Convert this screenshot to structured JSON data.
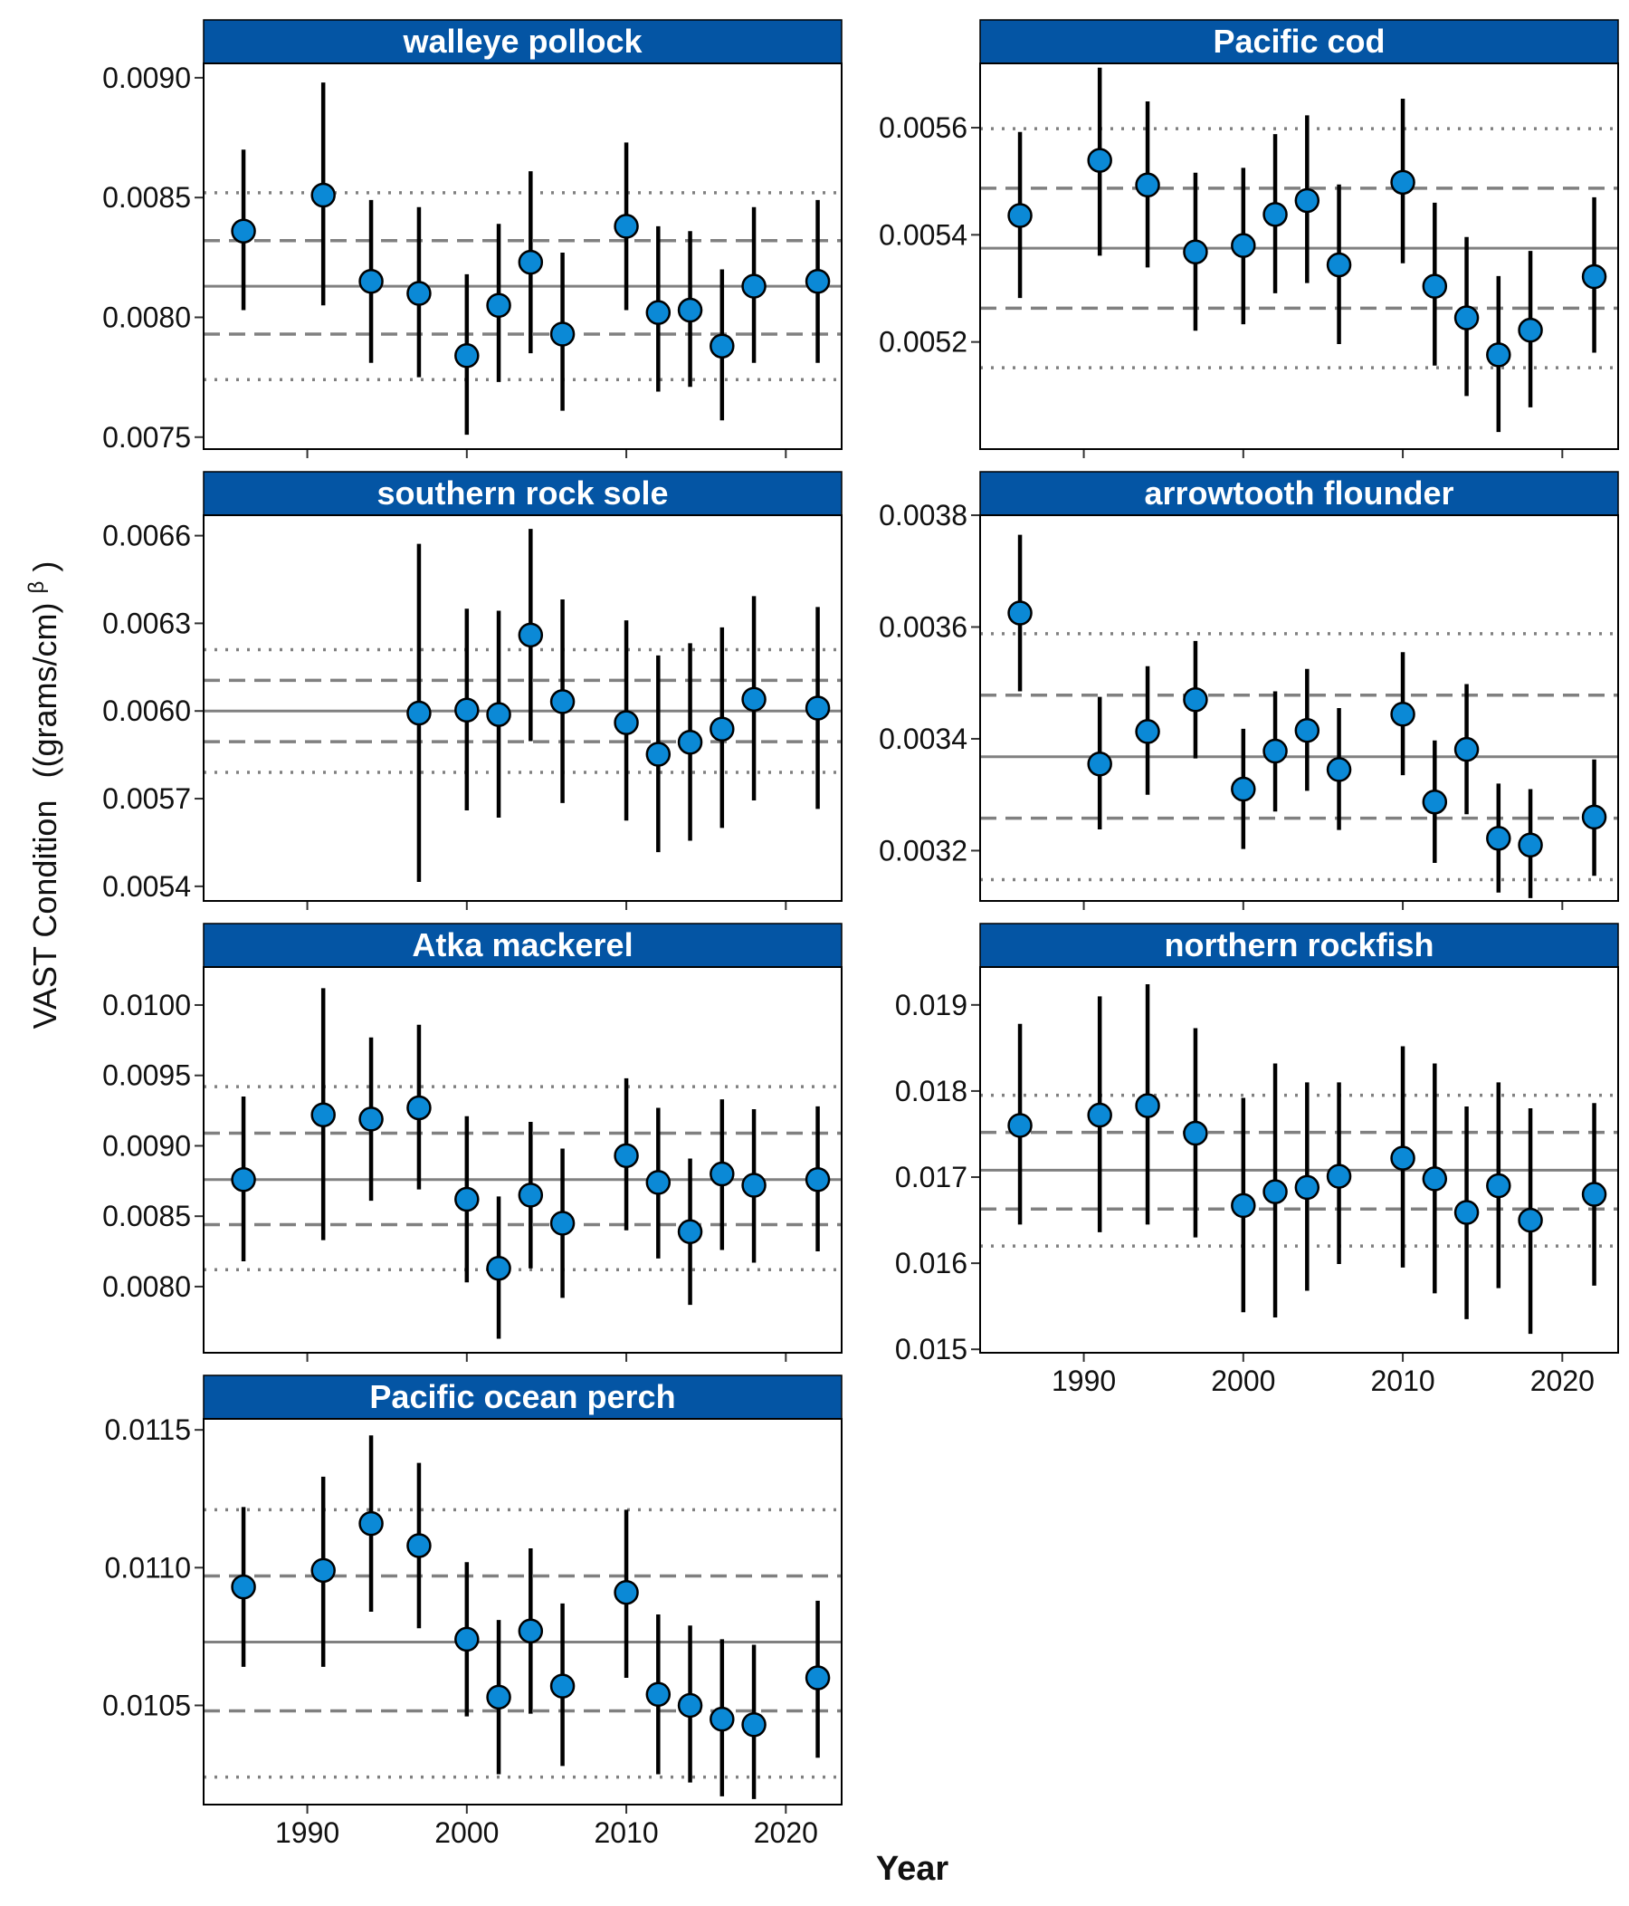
{
  "colors": {
    "strip": "#0455A4",
    "point": "#0B89D6",
    "errorbar": "#000000",
    "reference_line": "#808080",
    "panel_border": "#000000"
  },
  "axis_titles": {
    "y_prefix": "VAST Condition",
    "y_unit_open": "((grams/cm)",
    "y_unit_sup": "β",
    "y_unit_close": ")",
    "x": "Year"
  },
  "chart_data": [
    {
      "type": "scatter",
      "title": "walleye pollock",
      "x_ticks": [
        1990,
        2000,
        2010,
        2020
      ],
      "ylim": [
        0.00745,
        0.00906
      ],
      "y_ticks": [
        "0.0075",
        "0.0080",
        "0.0085",
        "0.0090"
      ],
      "reference_lines": {
        "mean": 0.00813,
        "dashed": [
          0.00793,
          0.00832
        ],
        "dotted": [
          0.00774,
          0.00852
        ]
      },
      "points": [
        {
          "x": 1986,
          "y": 0.00836,
          "lo": 0.00803,
          "hi": 0.0087
        },
        {
          "x": 1991,
          "y": 0.00851,
          "lo": 0.00805,
          "hi": 0.00898
        },
        {
          "x": 1994,
          "y": 0.00815,
          "lo": 0.00781,
          "hi": 0.00849
        },
        {
          "x": 1997,
          "y": 0.0081,
          "lo": 0.00775,
          "hi": 0.00846
        },
        {
          "x": 2000,
          "y": 0.00784,
          "lo": 0.00751,
          "hi": 0.00818
        },
        {
          "x": 2002,
          "y": 0.00805,
          "lo": 0.00773,
          "hi": 0.00839
        },
        {
          "x": 2004,
          "y": 0.00823,
          "lo": 0.00785,
          "hi": 0.00861
        },
        {
          "x": 2006,
          "y": 0.00793,
          "lo": 0.00761,
          "hi": 0.00827
        },
        {
          "x": 2010,
          "y": 0.00838,
          "lo": 0.00803,
          "hi": 0.00873
        },
        {
          "x": 2012,
          "y": 0.00802,
          "lo": 0.00769,
          "hi": 0.00838
        },
        {
          "x": 2014,
          "y": 0.00803,
          "lo": 0.00771,
          "hi": 0.00836
        },
        {
          "x": 2016,
          "y": 0.00788,
          "lo": 0.00757,
          "hi": 0.0082
        },
        {
          "x": 2018,
          "y": 0.00813,
          "lo": 0.00781,
          "hi": 0.00846
        },
        {
          "x": 2022,
          "y": 0.00815,
          "lo": 0.00781,
          "hi": 0.00849
        }
      ]
    },
    {
      "type": "scatter",
      "title": "Pacific cod",
      "x_ticks": [
        1990,
        2000,
        2010,
        2020
      ],
      "ylim": [
        0.005,
        0.00572
      ],
      "y_ticks": [
        "0.0052",
        "0.0054",
        "0.0056"
      ],
      "reference_lines": {
        "mean": 0.005375,
        "dashed": [
          0.005263,
          0.005487
        ],
        "dotted": [
          0.005152,
          0.005598
        ]
      },
      "points": [
        {
          "x": 1986,
          "y": 0.005436,
          "lo": 0.005282,
          "hi": 0.005592
        },
        {
          "x": 1991,
          "y": 0.005539,
          "lo": 0.005361,
          "hi": 0.005712
        },
        {
          "x": 1994,
          "y": 0.005493,
          "lo": 0.005339,
          "hi": 0.005649
        },
        {
          "x": 1997,
          "y": 0.005368,
          "lo": 0.005221,
          "hi": 0.005516
        },
        {
          "x": 2000,
          "y": 0.00538,
          "lo": 0.005233,
          "hi": 0.005525
        },
        {
          "x": 2002,
          "y": 0.005438,
          "lo": 0.005291,
          "hi": 0.005588
        },
        {
          "x": 2004,
          "y": 0.005464,
          "lo": 0.00531,
          "hi": 0.005623
        },
        {
          "x": 2006,
          "y": 0.005344,
          "lo": 0.005196,
          "hi": 0.005494
        },
        {
          "x": 2010,
          "y": 0.005498,
          "lo": 0.005347,
          "hi": 0.005654
        },
        {
          "x": 2012,
          "y": 0.005304,
          "lo": 0.005156,
          "hi": 0.00546
        },
        {
          "x": 2014,
          "y": 0.005245,
          "lo": 0.005099,
          "hi": 0.005396
        },
        {
          "x": 2016,
          "y": 0.005176,
          "lo": 0.005032,
          "hi": 0.005323
        },
        {
          "x": 2018,
          "y": 0.005222,
          "lo": 0.005078,
          "hi": 0.00537
        },
        {
          "x": 2022,
          "y": 0.005322,
          "lo": 0.00518,
          "hi": 0.00547
        }
      ]
    },
    {
      "type": "scatter",
      "title": "southern rock sole",
      "x_ticks": [
        1990,
        2000,
        2010,
        2020
      ],
      "ylim": [
        0.00535,
        0.00667
      ],
      "y_ticks": [
        "0.0054",
        "0.0057",
        "0.0060",
        "0.0063",
        "0.0066"
      ],
      "reference_lines": {
        "mean": 0.006,
        "dashed": [
          0.005895,
          0.006105
        ],
        "dotted": [
          0.00579,
          0.00621
        ]
      },
      "points": [
        {
          "x": 1997,
          "y": 0.005993,
          "lo": 0.005415,
          "hi": 0.006572
        },
        {
          "x": 2000,
          "y": 0.006003,
          "lo": 0.00566,
          "hi": 0.00635
        },
        {
          "x": 2002,
          "y": 0.005988,
          "lo": 0.005635,
          "hi": 0.006343
        },
        {
          "x": 2004,
          "y": 0.00626,
          "lo": 0.005897,
          "hi": 0.006623
        },
        {
          "x": 2006,
          "y": 0.006032,
          "lo": 0.005685,
          "hi": 0.006382
        },
        {
          "x": 2010,
          "y": 0.00596,
          "lo": 0.005625,
          "hi": 0.00631
        },
        {
          "x": 2012,
          "y": 0.005852,
          "lo": 0.005517,
          "hi": 0.00619
        },
        {
          "x": 2014,
          "y": 0.005893,
          "lo": 0.005556,
          "hi": 0.006232
        },
        {
          "x": 2016,
          "y": 0.005938,
          "lo": 0.0056,
          "hi": 0.006286
        },
        {
          "x": 2018,
          "y": 0.00604,
          "lo": 0.005694,
          "hi": 0.006393
        },
        {
          "x": 2022,
          "y": 0.00601,
          "lo": 0.005665,
          "hi": 0.006356
        }
      ]
    },
    {
      "type": "scatter",
      "title": "arrowtooth flounder",
      "x_ticks": [
        1990,
        2000,
        2010,
        2020
      ],
      "ylim": [
        0.00311,
        0.0038
      ],
      "y_ticks": [
        "0.0032",
        "0.0034",
        "0.0036",
        "0.0038"
      ],
      "reference_lines": {
        "mean": 0.003368,
        "dashed": [
          0.003258,
          0.003478
        ],
        "dotted": [
          0.003148,
          0.003588
        ]
      },
      "points": [
        {
          "x": 1986,
          "y": 0.003625,
          "lo": 0.003485,
          "hi": 0.003765
        },
        {
          "x": 1991,
          "y": 0.003355,
          "lo": 0.003238,
          "hi": 0.003475
        },
        {
          "x": 1994,
          "y": 0.003413,
          "lo": 0.0033,
          "hi": 0.00353
        },
        {
          "x": 1997,
          "y": 0.00347,
          "lo": 0.003365,
          "hi": 0.003575
        },
        {
          "x": 2000,
          "y": 0.00331,
          "lo": 0.003203,
          "hi": 0.003418
        },
        {
          "x": 2002,
          "y": 0.003378,
          "lo": 0.00327,
          "hi": 0.003485
        },
        {
          "x": 2004,
          "y": 0.003415,
          "lo": 0.003307,
          "hi": 0.003525
        },
        {
          "x": 2006,
          "y": 0.003345,
          "lo": 0.003237,
          "hi": 0.003455
        },
        {
          "x": 2010,
          "y": 0.003444,
          "lo": 0.003335,
          "hi": 0.003555
        },
        {
          "x": 2012,
          "y": 0.003287,
          "lo": 0.003178,
          "hi": 0.003397
        },
        {
          "x": 2014,
          "y": 0.003381,
          "lo": 0.003265,
          "hi": 0.003498
        },
        {
          "x": 2016,
          "y": 0.003222,
          "lo": 0.003125,
          "hi": 0.00332
        },
        {
          "x": 2018,
          "y": 0.00321,
          "lo": 0.003115,
          "hi": 0.00331
        },
        {
          "x": 2022,
          "y": 0.00326,
          "lo": 0.003155,
          "hi": 0.003363
        }
      ]
    },
    {
      "type": "scatter",
      "title": "Atka mackerel",
      "x_ticks": [
        1990,
        2000,
        2010,
        2020
      ],
      "ylim": [
        0.00753,
        0.01027
      ],
      "y_ticks": [
        "0.0080",
        "0.0085",
        "0.0090",
        "0.0095",
        "0.0100"
      ],
      "reference_lines": {
        "mean": 0.00876,
        "dashed": [
          0.00844,
          0.00909
        ],
        "dotted": [
          0.00812,
          0.00942
        ]
      },
      "points": [
        {
          "x": 1986,
          "y": 0.00876,
          "lo": 0.00818,
          "hi": 0.00935
        },
        {
          "x": 1991,
          "y": 0.00922,
          "lo": 0.00833,
          "hi": 0.01012
        },
        {
          "x": 1994,
          "y": 0.00919,
          "lo": 0.00861,
          "hi": 0.00977
        },
        {
          "x": 1997,
          "y": 0.00927,
          "lo": 0.00869,
          "hi": 0.00986
        },
        {
          "x": 2000,
          "y": 0.00862,
          "lo": 0.00803,
          "hi": 0.00921
        },
        {
          "x": 2002,
          "y": 0.00813,
          "lo": 0.00763,
          "hi": 0.00864
        },
        {
          "x": 2004,
          "y": 0.00865,
          "lo": 0.00813,
          "hi": 0.00917
        },
        {
          "x": 2006,
          "y": 0.00845,
          "lo": 0.00792,
          "hi": 0.00898
        },
        {
          "x": 2010,
          "y": 0.00893,
          "lo": 0.0084,
          "hi": 0.00948
        },
        {
          "x": 2012,
          "y": 0.00874,
          "lo": 0.0082,
          "hi": 0.00927
        },
        {
          "x": 2014,
          "y": 0.00839,
          "lo": 0.00787,
          "hi": 0.00891
        },
        {
          "x": 2016,
          "y": 0.0088,
          "lo": 0.00826,
          "hi": 0.00933
        },
        {
          "x": 2018,
          "y": 0.00872,
          "lo": 0.00817,
          "hi": 0.00926
        },
        {
          "x": 2022,
          "y": 0.00876,
          "lo": 0.00825,
          "hi": 0.00928
        }
      ]
    },
    {
      "type": "scatter",
      "title": "northern rockfish",
      "x_ticks": [
        1990,
        2000,
        2010,
        2020
      ],
      "ylim": [
        0.01496,
        0.01944
      ],
      "y_ticks": [
        "0.015",
        "0.016",
        "0.017",
        "0.018",
        "0.019"
      ],
      "reference_lines": {
        "mean": 0.01708,
        "dashed": [
          0.01663,
          0.01752
        ],
        "dotted": [
          0.0162,
          0.01795
        ]
      },
      "points": [
        {
          "x": 1986,
          "y": 0.0176,
          "lo": 0.01645,
          "hi": 0.01878
        },
        {
          "x": 1991,
          "y": 0.01772,
          "lo": 0.01636,
          "hi": 0.0191
        },
        {
          "x": 1994,
          "y": 0.01783,
          "lo": 0.01645,
          "hi": 0.01924
        },
        {
          "x": 1997,
          "y": 0.01751,
          "lo": 0.0163,
          "hi": 0.01873
        },
        {
          "x": 2000,
          "y": 0.01667,
          "lo": 0.01543,
          "hi": 0.01792
        },
        {
          "x": 2002,
          "y": 0.01683,
          "lo": 0.01537,
          "hi": 0.01832
        },
        {
          "x": 2004,
          "y": 0.01688,
          "lo": 0.01568,
          "hi": 0.0181
        },
        {
          "x": 2006,
          "y": 0.01701,
          "lo": 0.01599,
          "hi": 0.0181
        },
        {
          "x": 2010,
          "y": 0.01722,
          "lo": 0.01595,
          "hi": 0.01852
        },
        {
          "x": 2012,
          "y": 0.01698,
          "lo": 0.01565,
          "hi": 0.01832
        },
        {
          "x": 2014,
          "y": 0.01659,
          "lo": 0.01535,
          "hi": 0.01782
        },
        {
          "x": 2016,
          "y": 0.0169,
          "lo": 0.01571,
          "hi": 0.0181
        },
        {
          "x": 2018,
          "y": 0.0165,
          "lo": 0.01518,
          "hi": 0.0178
        },
        {
          "x": 2022,
          "y": 0.0168,
          "lo": 0.01574,
          "hi": 0.01786
        }
      ]
    },
    {
      "type": "scatter",
      "title": "Pacific ocean perch",
      "x_ticks": [
        1990,
        2000,
        2010,
        2020
      ],
      "ylim": [
        0.01014,
        0.01154
      ],
      "y_ticks": [
        "0.0105",
        "0.0110",
        "0.0115"
      ],
      "reference_lines": {
        "mean": 0.01073,
        "dashed": [
          0.01048,
          0.01097
        ],
        "dotted": [
          0.01024,
          0.01121
        ]
      },
      "points": [
        {
          "x": 1986,
          "y": 0.01093,
          "lo": 0.01064,
          "hi": 0.01122
        },
        {
          "x": 1991,
          "y": 0.01099,
          "lo": 0.01064,
          "hi": 0.01133
        },
        {
          "x": 1994,
          "y": 0.01116,
          "lo": 0.01084,
          "hi": 0.01148
        },
        {
          "x": 1997,
          "y": 0.01108,
          "lo": 0.01078,
          "hi": 0.01138
        },
        {
          "x": 2000,
          "y": 0.01074,
          "lo": 0.01046,
          "hi": 0.01102
        },
        {
          "x": 2002,
          "y": 0.01053,
          "lo": 0.01025,
          "hi": 0.01081
        },
        {
          "x": 2004,
          "y": 0.01077,
          "lo": 0.01047,
          "hi": 0.01107
        },
        {
          "x": 2006,
          "y": 0.01057,
          "lo": 0.01028,
          "hi": 0.01087
        },
        {
          "x": 2010,
          "y": 0.01091,
          "lo": 0.0106,
          "hi": 0.01121
        },
        {
          "x": 2012,
          "y": 0.01054,
          "lo": 0.01025,
          "hi": 0.01083
        },
        {
          "x": 2014,
          "y": 0.0105,
          "lo": 0.01022,
          "hi": 0.01079
        },
        {
          "x": 2016,
          "y": 0.01045,
          "lo": 0.01017,
          "hi": 0.01074
        },
        {
          "x": 2018,
          "y": 0.01043,
          "lo": 0.01016,
          "hi": 0.01072
        },
        {
          "x": 2022,
          "y": 0.0106,
          "lo": 0.01031,
          "hi": 0.01088
        }
      ]
    }
  ]
}
